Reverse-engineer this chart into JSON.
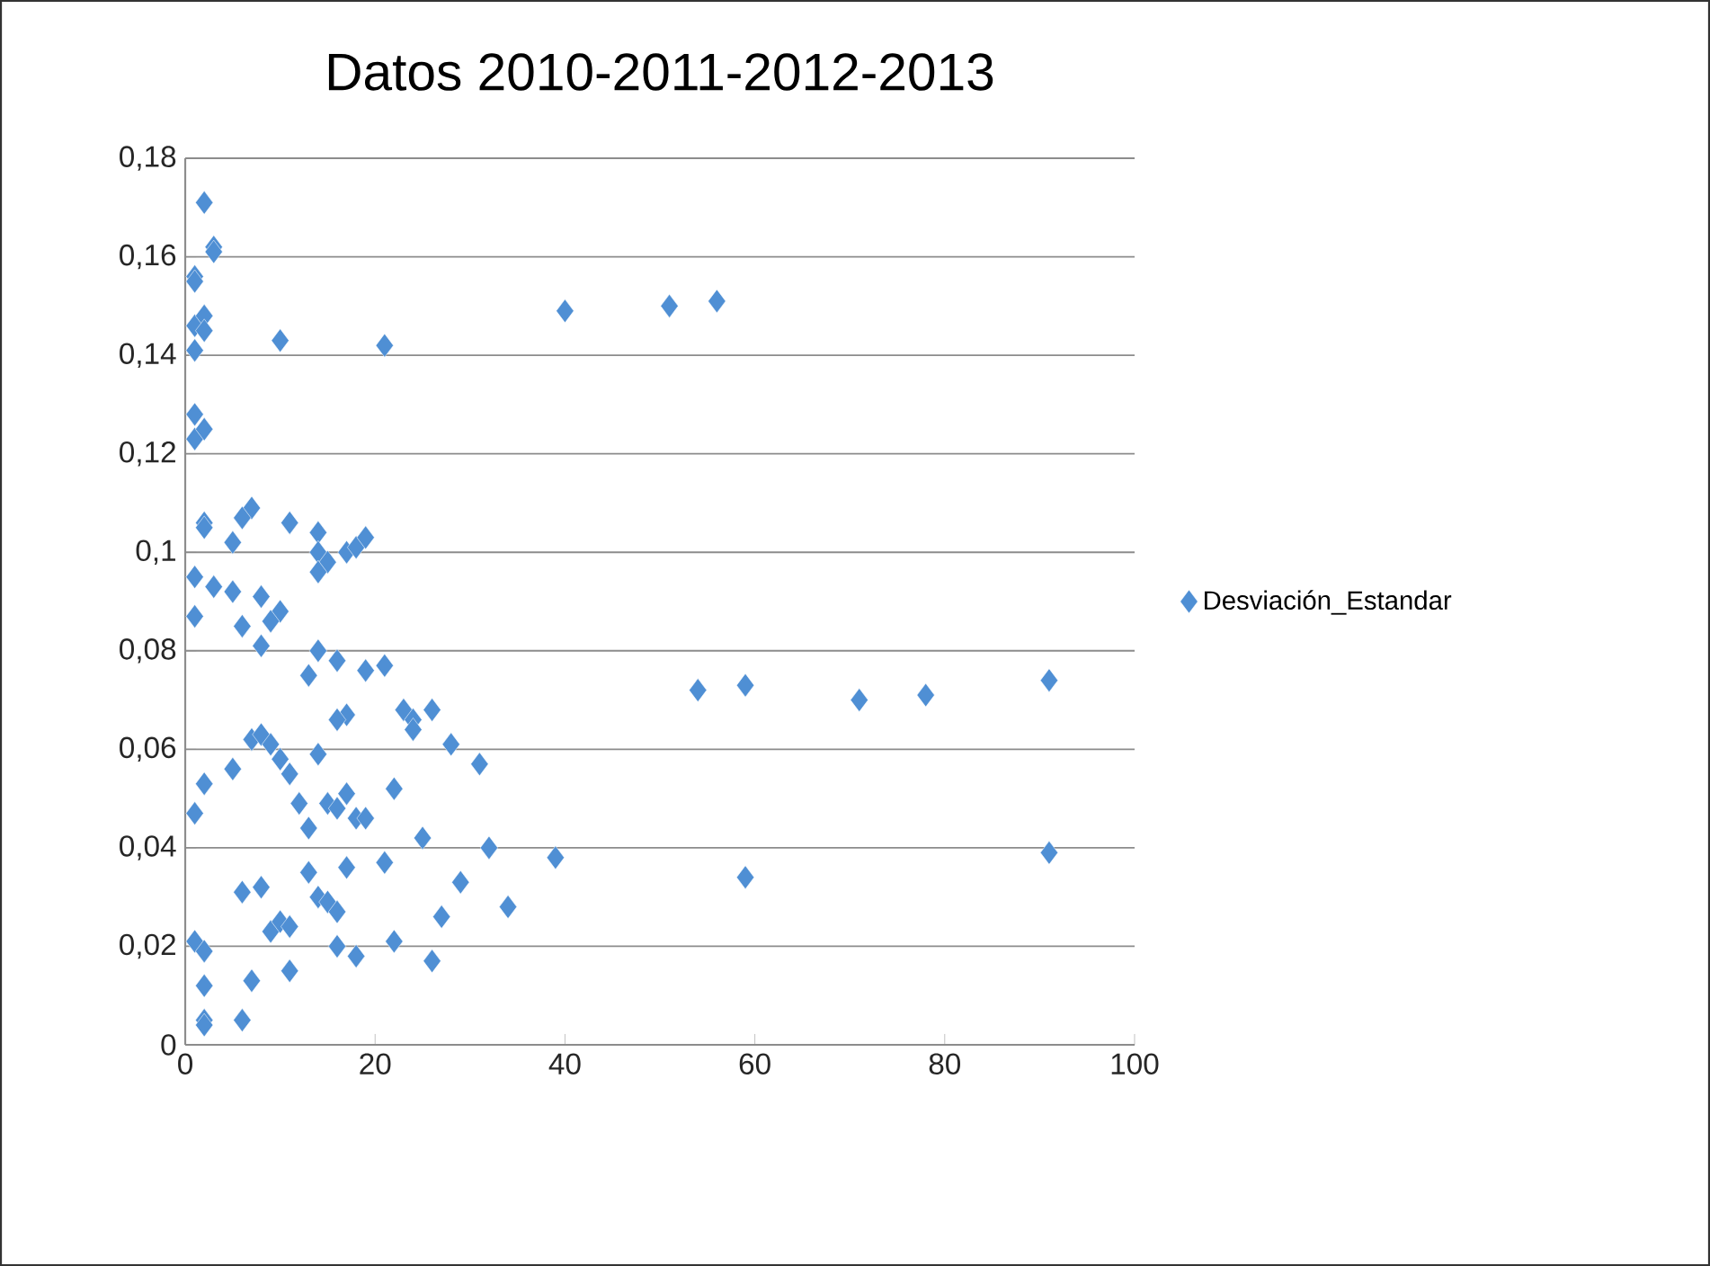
{
  "chart_data": {
    "type": "scatter",
    "title": "Datos  2010-2011-2012-2013",
    "series": [
      {
        "name": "Desviación_Estandar",
        "color": "#4f8fd4",
        "x": [
          2,
          3,
          3,
          1,
          1,
          1,
          2,
          2,
          1,
          10,
          21,
          40,
          51,
          56,
          1,
          1,
          2,
          2,
          2,
          7,
          6,
          11,
          14,
          5,
          17,
          18,
          19,
          14,
          15,
          14,
          1,
          3,
          5,
          8,
          10,
          9,
          6,
          1,
          8,
          14,
          16,
          21,
          19,
          13,
          23,
          24,
          26,
          24,
          17,
          16,
          28,
          31,
          54,
          59,
          71,
          78,
          91,
          7,
          8,
          9,
          10,
          11,
          12,
          14,
          2,
          5,
          1,
          13,
          15,
          16,
          17,
          18,
          19,
          22,
          25,
          32,
          39,
          91,
          6,
          8,
          13,
          14,
          15,
          16,
          17,
          21,
          9,
          10,
          11,
          16,
          18,
          22,
          27,
          29,
          34,
          59,
          1,
          2,
          2,
          7,
          11,
          26,
          2,
          2,
          6
        ],
        "values": [
          0.171,
          0.162,
          0.161,
          0.156,
          0.155,
          0.146,
          0.148,
          0.145,
          0.141,
          0.143,
          0.142,
          0.149,
          0.15,
          0.151,
          0.128,
          0.123,
          0.125,
          0.106,
          0.105,
          0.109,
          0.107,
          0.106,
          0.104,
          0.102,
          0.1,
          0.101,
          0.103,
          0.1,
          0.098,
          0.096,
          0.095,
          0.093,
          0.092,
          0.091,
          0.088,
          0.086,
          0.085,
          0.087,
          0.081,
          0.08,
          0.078,
          0.077,
          0.076,
          0.075,
          0.068,
          0.066,
          0.068,
          0.064,
          0.067,
          0.066,
          0.061,
          0.057,
          0.072,
          0.073,
          0.07,
          0.071,
          0.074,
          0.062,
          0.063,
          0.061,
          0.058,
          0.055,
          0.049,
          0.059,
          0.053,
          0.056,
          0.047,
          0.044,
          0.049,
          0.048,
          0.051,
          0.046,
          0.046,
          0.052,
          0.042,
          0.04,
          0.038,
          0.039,
          0.031,
          0.032,
          0.035,
          0.03,
          0.029,
          0.027,
          0.036,
          0.037,
          0.023,
          0.025,
          0.024,
          0.02,
          0.018,
          0.021,
          0.026,
          0.033,
          0.028,
          0.034,
          0.021,
          0.019,
          0.012,
          0.013,
          0.015,
          0.017,
          0.005,
          0.004,
          0.005
        ]
      }
    ],
    "xlim": [
      0,
      100
    ],
    "xticks": [
      0,
      20,
      40,
      60,
      80,
      100
    ],
    "ylim": [
      0,
      0.18
    ],
    "yticks": [
      {
        "value": 0,
        "label": "0"
      },
      {
        "value": 0.02,
        "label": "0,02"
      },
      {
        "value": 0.04,
        "label": "0,04"
      },
      {
        "value": 0.06,
        "label": "0,06"
      },
      {
        "value": 0.08,
        "label": "0,08"
      },
      {
        "value": 0.1,
        "label": "0,1"
      },
      {
        "value": 0.12,
        "label": "0,12"
      },
      {
        "value": 0.14,
        "label": "0,14"
      },
      {
        "value": 0.16,
        "label": "0,16"
      },
      {
        "value": 0.18,
        "label": "0,18"
      }
    ],
    "grid": "y",
    "legend": "right",
    "marker": "diamond"
  }
}
